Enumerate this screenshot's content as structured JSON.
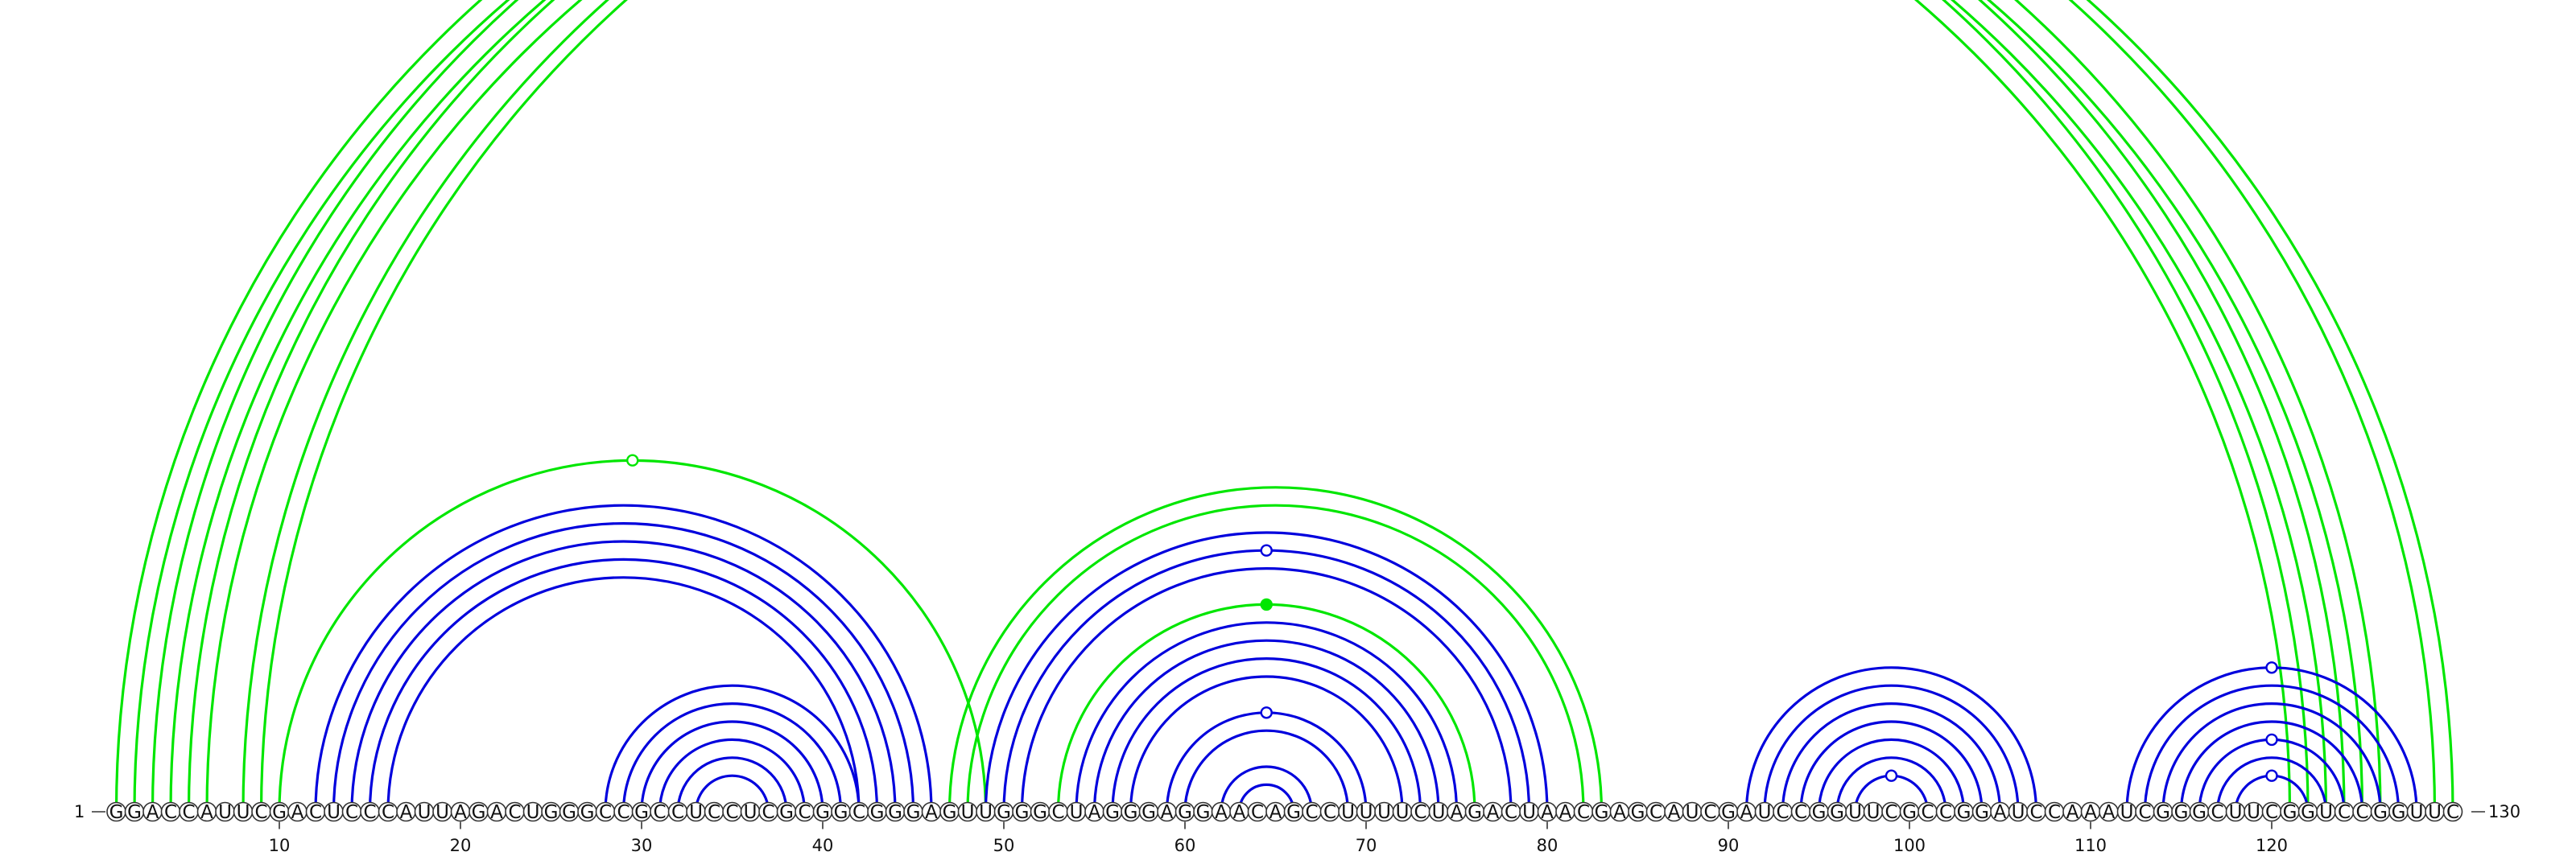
{
  "sequence": "GGACCAUUCGACUCCCAUUAGACUGGGCCGCCUCCUCGCGGCGGGAGUUGGGCUAGGGAGGAACAGCCUUUUCUAGACUAACGAGCAUCGAUCCGGUUCGCCGGAUCCAAAUCGGGCUUCGGUCCGGUUC",
  "start_label": "1",
  "end_label": "130",
  "tick_labels": [
    "10",
    "20",
    "30",
    "40",
    "50",
    "60",
    "70",
    "80",
    "90",
    "100",
    "110",
    "120"
  ],
  "colors": {
    "blue": "#0000dd",
    "green": "#00e600"
  },
  "arcs": [
    {
      "i": 1,
      "j": 122,
      "c": "green"
    },
    {
      "i": 2,
      "j": 121,
      "c": "green"
    },
    {
      "i": 3,
      "j": 124,
      "c": "green"
    },
    {
      "i": 4,
      "j": 123,
      "c": "green"
    },
    {
      "i": 5,
      "j": 126,
      "c": "green"
    },
    {
      "i": 6,
      "j": 125,
      "c": "green"
    },
    {
      "i": 8,
      "j": 129,
      "c": "green"
    },
    {
      "i": 9,
      "j": 130,
      "c": "green"
    },
    {
      "i": 10,
      "j": 49,
      "c": "green"
    },
    {
      "i": 12,
      "j": 46,
      "c": "blue"
    },
    {
      "i": 13,
      "j": 45,
      "c": "blue"
    },
    {
      "i": 14,
      "j": 44,
      "c": "blue"
    },
    {
      "i": 15,
      "j": 43,
      "c": "blue"
    },
    {
      "i": 16,
      "j": 42,
      "c": "blue"
    },
    {
      "i": 28,
      "j": 42,
      "c": "blue"
    },
    {
      "i": 29,
      "j": 41,
      "c": "blue"
    },
    {
      "i": 30,
      "j": 40,
      "c": "blue"
    },
    {
      "i": 31,
      "j": 39,
      "c": "blue"
    },
    {
      "i": 32,
      "j": 38,
      "c": "blue"
    },
    {
      "i": 33,
      "j": 37,
      "c": "blue"
    },
    {
      "i": 47,
      "j": 83,
      "c": "green"
    },
    {
      "i": 48,
      "j": 82,
      "c": "green"
    },
    {
      "i": 49,
      "j": 80,
      "c": "blue"
    },
    {
      "i": 50,
      "j": 79,
      "c": "blue"
    },
    {
      "i": 51,
      "j": 78,
      "c": "blue"
    },
    {
      "i": 53,
      "j": 76,
      "c": "green"
    },
    {
      "i": 54,
      "j": 75,
      "c": "blue"
    },
    {
      "i": 55,
      "j": 74,
      "c": "blue"
    },
    {
      "i": 56,
      "j": 73,
      "c": "blue"
    },
    {
      "i": 57,
      "j": 72,
      "c": "blue"
    },
    {
      "i": 59,
      "j": 70,
      "c": "blue"
    },
    {
      "i": 60,
      "j": 69,
      "c": "blue"
    },
    {
      "i": 62,
      "j": 67,
      "c": "blue"
    },
    {
      "i": 63,
      "j": 66,
      "c": "blue"
    },
    {
      "i": 91,
      "j": 107,
      "c": "blue"
    },
    {
      "i": 92,
      "j": 106,
      "c": "blue"
    },
    {
      "i": 93,
      "j": 105,
      "c": "blue"
    },
    {
      "i": 94,
      "j": 104,
      "c": "blue"
    },
    {
      "i": 95,
      "j": 103,
      "c": "blue"
    },
    {
      "i": 96,
      "j": 102,
      "c": "blue"
    },
    {
      "i": 97,
      "j": 101,
      "c": "blue"
    },
    {
      "i": 112,
      "j": 128,
      "c": "blue"
    },
    {
      "i": 113,
      "j": 127,
      "c": "blue"
    },
    {
      "i": 114,
      "j": 126,
      "c": "blue"
    },
    {
      "i": 115,
      "j": 125,
      "c": "blue"
    },
    {
      "i": 116,
      "j": 124,
      "c": "blue"
    },
    {
      "i": 117,
      "j": 123,
      "c": "blue"
    },
    {
      "i": 118,
      "j": 122,
      "c": "blue"
    }
  ],
  "markers": [
    {
      "i": 9,
      "j": 130,
      "c": "green",
      "filled": false
    },
    {
      "i": 10,
      "j": 49,
      "c": "green",
      "filled": false
    },
    {
      "i": 50,
      "j": 79,
      "c": "blue",
      "filled": false
    },
    {
      "i": 53,
      "j": 76,
      "c": "green",
      "filled": true
    },
    {
      "i": 59,
      "j": 70,
      "c": "blue",
      "filled": false
    },
    {
      "i": 97,
      "j": 101,
      "c": "blue",
      "filled": false
    },
    {
      "i": 112,
      "j": 128,
      "c": "blue",
      "filled": false
    },
    {
      "i": 116,
      "j": 124,
      "c": "blue",
      "filled": false
    },
    {
      "i": 118,
      "j": 122,
      "c": "blue",
      "filled": false
    }
  ]
}
